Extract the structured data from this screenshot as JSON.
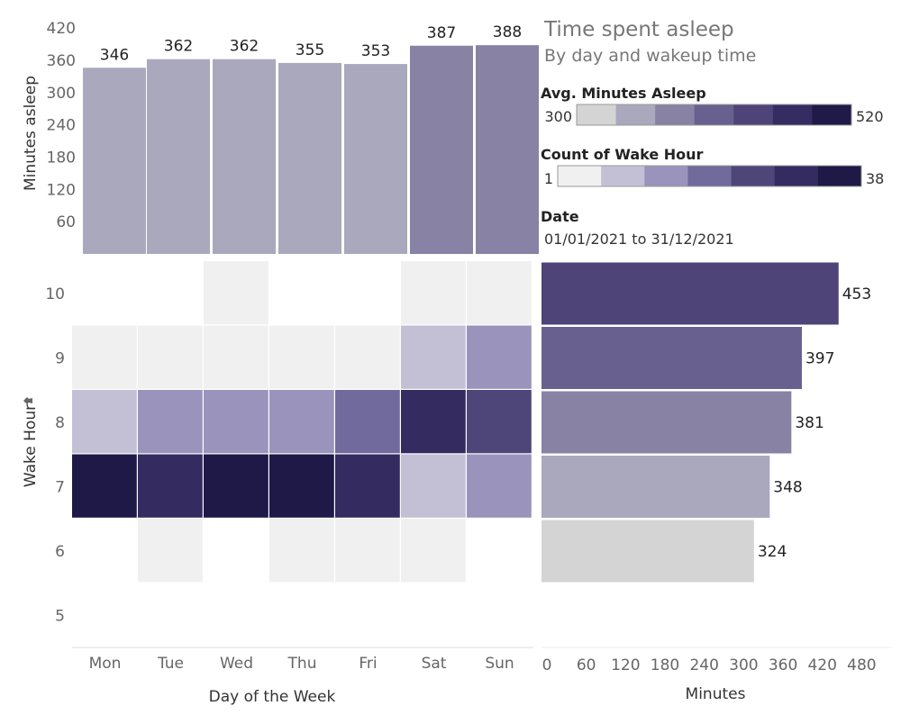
{
  "title": "Time spent asleep",
  "subtitle": "By day and wakeup time",
  "legends": {
    "avg_minutes": {
      "title": "Avg. Minutes Asleep",
      "min_label": "300",
      "max_label": "520",
      "colors": [
        "#d4d4d4",
        "#aaa8bd",
        "#8882a5",
        "#68608f",
        "#4e4478",
        "#352c62",
        "#1f1a47"
      ]
    },
    "count_wake": {
      "title": "Count of Wake Hour",
      "min_label": "1",
      "max_label": "38",
      "colors": [
        "#f0f0f0",
        "#c3c0d6",
        "#9a94bc",
        "#716a9c",
        "#4e4679",
        "#342b61",
        "#1e1946"
      ]
    },
    "date": {
      "title": "Date",
      "value": "01/01/2021 to 31/12/2021"
    }
  },
  "chart_data": [
    {
      "type": "bar",
      "id": "minutes-by-day",
      "categories": [
        "Mon",
        "Tue",
        "Wed",
        "Thu",
        "Fri",
        "Sat",
        "Sun"
      ],
      "values": [
        346,
        362,
        362,
        355,
        353,
        387,
        388
      ],
      "data_labels": [
        "346",
        "362",
        "362",
        "355",
        "353",
        "387",
        "388"
      ],
      "ylabel": "Minutes asleep",
      "yticks": [
        60,
        120,
        180,
        240,
        300,
        360,
        420
      ],
      "ytick_labels": [
        "60",
        "120",
        "180",
        "240",
        "300",
        "360",
        "420"
      ],
      "ylim": [
        0,
        450
      ],
      "bar_colors": [
        "#aaa8bd",
        "#aaa8bd",
        "#aaa8bd",
        "#aaa8bd",
        "#aaa8bd",
        "#8882a5",
        "#8882a5"
      ]
    },
    {
      "type": "heatmap",
      "id": "wake-hour-by-day",
      "x": [
        "Mon",
        "Tue",
        "Wed",
        "Thu",
        "Fri",
        "Sat",
        "Sun"
      ],
      "y": [
        10,
        9,
        8,
        7,
        6,
        5
      ],
      "y_labels": [
        "10",
        "9",
        "8",
        "7",
        "6",
        "5"
      ],
      "xlabel": "Day of the Week",
      "ylabel": "Wake Hour",
      "color_levels": [
        [
          null,
          null,
          0,
          null,
          null,
          0,
          0
        ],
        [
          0,
          0,
          0,
          0,
          0,
          1,
          2
        ],
        [
          1,
          2,
          2,
          2,
          3,
          5,
          4
        ],
        [
          6,
          5,
          6,
          6,
          5,
          1,
          2
        ],
        [
          null,
          0,
          null,
          0,
          0,
          0,
          null
        ],
        [
          null,
          null,
          null,
          null,
          null,
          null,
          null
        ]
      ]
    },
    {
      "type": "bar",
      "id": "minutes-by-wake-hour",
      "orientation": "horizontal",
      "categories": [
        "10",
        "9",
        "8",
        "7",
        "6"
      ],
      "values": [
        453,
        397,
        381,
        348,
        324
      ],
      "data_labels": [
        "453",
        "397",
        "381",
        "348",
        "324"
      ],
      "xlabel": "Minutes",
      "xticks": [
        0,
        60,
        120,
        180,
        240,
        300,
        360,
        420,
        480
      ],
      "xtick_labels": [
        "0",
        "60",
        "120",
        "180",
        "240",
        "300",
        "360",
        "420",
        "480"
      ],
      "xlim": [
        0,
        480
      ],
      "bar_colors": [
        "#4e4478",
        "#68608f",
        "#8882a5",
        "#aaa8bd",
        "#d4d4d4"
      ]
    }
  ]
}
